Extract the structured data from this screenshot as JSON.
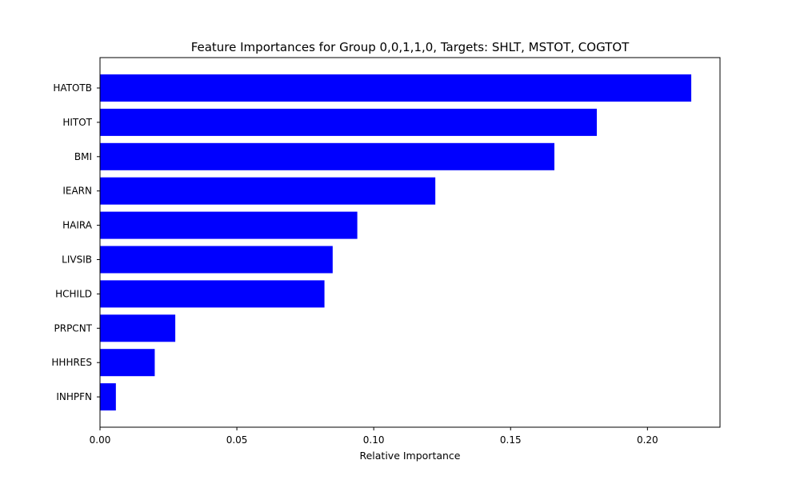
{
  "chart_data": {
    "type": "bar",
    "orientation": "horizontal",
    "title": "Feature Importances for Group 0,0,1,1,0, Targets: SHLT, MSTOT, COGTOT",
    "xlabel": "Relative Importance",
    "ylabel": "",
    "categories": [
      "HATOTB",
      "HITOT",
      "BMI",
      "IEARN",
      "HAIRA",
      "LIVSIB",
      "HCHILD",
      "PRPCNT",
      "HHHRES",
      "INHPFN"
    ],
    "values": [
      0.216,
      0.1815,
      0.166,
      0.1225,
      0.094,
      0.085,
      0.082,
      0.0275,
      0.02,
      0.0058
    ],
    "xlim": [
      0.0,
      0.2265
    ],
    "xticks": [
      0.0,
      0.05,
      0.1,
      0.15,
      0.2
    ],
    "xtick_labels": [
      "0.00",
      "0.05",
      "0.10",
      "0.15",
      "0.20"
    ],
    "bar_color": "#0000ff",
    "grid": false,
    "legend": "none"
  }
}
